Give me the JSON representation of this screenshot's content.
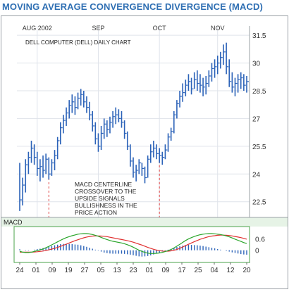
{
  "page": {
    "title": "MOVING AVERAGE CONVERGENCE DIVERGENCE (MACD)"
  },
  "chart_data": {
    "type": "ohlc",
    "subtitle": "DELL COMPUTER (DELL) DAILY CHART",
    "months": [
      "AUG 2002",
      "SEP",
      "OCT",
      "NOV"
    ],
    "price_ticks": [
      "31.5",
      "30",
      "28.5",
      "27",
      "25.5",
      "24",
      "22.5"
    ],
    "ylim": [
      21.5,
      32.0
    ],
    "day_labels": [
      "24",
      "01",
      "09",
      "19",
      "27",
      "05",
      "13",
      "23",
      "01",
      "09",
      "17",
      "25",
      "04",
      "12",
      "20"
    ],
    "annotation_lines": [
      "MACD CENTERLINE",
      "CROSSOVER TO THE",
      "UPSIDE SIGNALS",
      "BULLISHNESS IN THE",
      "PRICE ACTION"
    ],
    "price_series": [
      {
        "h": 24.6,
        "l": 22.0,
        "c": 22.6
      },
      {
        "h": 23.8,
        "l": 22.3,
        "c": 23.4
      },
      {
        "h": 24.8,
        "l": 23.0,
        "c": 24.5
      },
      {
        "h": 25.2,
        "l": 24.0,
        "c": 24.9
      },
      {
        "h": 25.8,
        "l": 24.6,
        "c": 25.4
      },
      {
        "h": 25.6,
        "l": 24.5,
        "c": 24.9
      },
      {
        "h": 25.2,
        "l": 23.9,
        "c": 24.3
      },
      {
        "h": 24.8,
        "l": 23.6,
        "c": 24.4
      },
      {
        "h": 25.0,
        "l": 23.8,
        "c": 24.2
      },
      {
        "h": 25.1,
        "l": 24.0,
        "c": 24.8
      },
      {
        "h": 24.9,
        "l": 23.7,
        "c": 24.0
      },
      {
        "h": 24.8,
        "l": 23.9,
        "c": 24.6
      },
      {
        "h": 25.3,
        "l": 24.2,
        "c": 25.0
      },
      {
        "h": 26.0,
        "l": 24.8,
        "c": 25.8
      },
      {
        "h": 26.8,
        "l": 25.6,
        "c": 26.5
      },
      {
        "h": 27.2,
        "l": 26.2,
        "c": 26.9
      },
      {
        "h": 27.6,
        "l": 26.6,
        "c": 27.3
      },
      {
        "h": 28.0,
        "l": 27.0,
        "c": 27.7
      },
      {
        "h": 28.3,
        "l": 27.3,
        "c": 27.9
      },
      {
        "h": 28.2,
        "l": 27.2,
        "c": 27.6
      },
      {
        "h": 28.4,
        "l": 27.5,
        "c": 28.1
      },
      {
        "h": 28.6,
        "l": 27.7,
        "c": 28.3
      },
      {
        "h": 28.5,
        "l": 27.6,
        "c": 27.9
      },
      {
        "h": 28.2,
        "l": 27.3,
        "c": 27.6
      },
      {
        "h": 27.9,
        "l": 26.9,
        "c": 27.2
      },
      {
        "h": 27.4,
        "l": 26.3,
        "c": 26.6
      },
      {
        "h": 26.8,
        "l": 25.6,
        "c": 25.9
      },
      {
        "h": 26.2,
        "l": 25.2,
        "c": 25.5
      },
      {
        "h": 26.6,
        "l": 25.3,
        "c": 26.2
      },
      {
        "h": 27.0,
        "l": 25.9,
        "c": 26.7
      },
      {
        "h": 26.9,
        "l": 26.0,
        "c": 26.4
      },
      {
        "h": 27.1,
        "l": 26.2,
        "c": 26.8
      },
      {
        "h": 27.4,
        "l": 26.5,
        "c": 27.1
      },
      {
        "h": 27.6,
        "l": 26.7,
        "c": 27.2
      },
      {
        "h": 27.5,
        "l": 26.8,
        "c": 27.0
      },
      {
        "h": 27.4,
        "l": 26.5,
        "c": 26.8
      },
      {
        "h": 26.9,
        "l": 25.9,
        "c": 26.2
      },
      {
        "h": 26.3,
        "l": 25.3,
        "c": 25.5
      },
      {
        "h": 25.6,
        "l": 24.4,
        "c": 24.7
      },
      {
        "h": 24.9,
        "l": 23.8,
        "c": 24.1
      },
      {
        "h": 24.5,
        "l": 23.6,
        "c": 24.2
      },
      {
        "h": 24.8,
        "l": 24.0,
        "c": 24.6
      },
      {
        "h": 24.6,
        "l": 23.9,
        "c": 24.3
      },
      {
        "h": 24.4,
        "l": 23.5,
        "c": 23.8
      },
      {
        "h": 25.0,
        "l": 23.8,
        "c": 24.8
      },
      {
        "h": 25.6,
        "l": 24.6,
        "c": 25.2
      },
      {
        "h": 25.8,
        "l": 24.9,
        "c": 25.4
      },
      {
        "h": 25.6,
        "l": 24.8,
        "c": 25.1
      },
      {
        "h": 25.4,
        "l": 24.6,
        "c": 25.0
      },
      {
        "h": 25.2,
        "l": 24.5,
        "c": 24.9
      },
      {
        "h": 25.6,
        "l": 24.8,
        "c": 25.3
      },
      {
        "h": 26.2,
        "l": 25.2,
        "c": 26.0
      },
      {
        "h": 26.5,
        "l": 25.8,
        "c": 26.3
      },
      {
        "h": 27.4,
        "l": 26.2,
        "c": 27.2
      },
      {
        "h": 28.0,
        "l": 27.0,
        "c": 27.8
      },
      {
        "h": 28.5,
        "l": 27.6,
        "c": 28.2
      },
      {
        "h": 28.9,
        "l": 27.9,
        "c": 28.4
      },
      {
        "h": 29.1,
        "l": 28.2,
        "c": 28.8
      },
      {
        "h": 29.4,
        "l": 28.5,
        "c": 29.0
      },
      {
        "h": 29.2,
        "l": 28.3,
        "c": 28.6
      },
      {
        "h": 29.5,
        "l": 28.6,
        "c": 29.1
      },
      {
        "h": 29.6,
        "l": 28.5,
        "c": 28.9
      },
      {
        "h": 29.4,
        "l": 28.4,
        "c": 28.8
      },
      {
        "h": 29.2,
        "l": 28.2,
        "c": 28.7
      },
      {
        "h": 29.3,
        "l": 28.3,
        "c": 28.9
      },
      {
        "h": 29.6,
        "l": 28.7,
        "c": 29.3
      },
      {
        "h": 30.0,
        "l": 29.0,
        "c": 29.7
      },
      {
        "h": 30.2,
        "l": 29.2,
        "c": 29.8
      },
      {
        "h": 30.4,
        "l": 29.4,
        "c": 30.0
      },
      {
        "h": 30.6,
        "l": 29.7,
        "c": 30.3
      },
      {
        "h": 31.0,
        "l": 29.9,
        "c": 30.6
      },
      {
        "h": 31.1,
        "l": 29.4,
        "c": 29.8
      },
      {
        "h": 30.2,
        "l": 28.7,
        "c": 29.0
      },
      {
        "h": 29.5,
        "l": 28.4,
        "c": 28.7
      },
      {
        "h": 29.2,
        "l": 28.2,
        "c": 28.9
      },
      {
        "h": 29.4,
        "l": 28.4,
        "c": 29.1
      },
      {
        "h": 29.5,
        "l": 28.6,
        "c": 29.2
      },
      {
        "h": 29.4,
        "l": 28.5,
        "c": 28.8
      },
      {
        "h": 29.3,
        "l": 28.4,
        "c": 29.0
      }
    ],
    "macd_label": "MACD",
    "macd_ticks": [
      "0.6",
      "0"
    ],
    "macd_ylim": [
      -0.6,
      1.2
    ],
    "macd": [
      -0.05,
      -0.1,
      -0.12,
      -0.12,
      -0.1,
      -0.06,
      -0.02,
      0.02,
      0.07,
      0.13,
      0.2,
      0.28,
      0.36,
      0.44,
      0.52,
      0.59,
      0.66,
      0.71,
      0.76,
      0.8,
      0.84,
      0.86,
      0.87,
      0.87,
      0.85,
      0.82,
      0.78,
      0.73,
      0.67,
      0.61,
      0.56,
      0.51,
      0.47,
      0.44,
      0.41,
      0.38,
      0.34,
      0.29,
      0.23,
      0.16,
      0.08,
      0.0,
      -0.06,
      -0.11,
      -0.15,
      -0.17,
      -0.17,
      -0.16,
      -0.14,
      -0.11,
      -0.07,
      -0.02,
      0.04,
      0.12,
      0.21,
      0.31,
      0.41,
      0.51,
      0.59,
      0.66,
      0.72,
      0.77,
      0.81,
      0.84,
      0.86,
      0.87,
      0.87,
      0.86,
      0.84,
      0.82,
      0.79,
      0.75,
      0.7,
      0.64,
      0.58,
      0.52,
      0.46,
      0.4,
      0.35
    ],
    "signal": [
      -0.1,
      -0.1,
      -0.1,
      -0.1,
      -0.1,
      -0.09,
      -0.08,
      -0.06,
      -0.04,
      -0.01,
      0.02,
      0.06,
      0.1,
      0.15,
      0.2,
      0.26,
      0.32,
      0.38,
      0.44,
      0.5,
      0.55,
      0.6,
      0.65,
      0.69,
      0.72,
      0.74,
      0.75,
      0.75,
      0.74,
      0.73,
      0.71,
      0.68,
      0.65,
      0.62,
      0.59,
      0.56,
      0.53,
      0.5,
      0.46,
      0.42,
      0.37,
      0.32,
      0.27,
      0.21,
      0.15,
      0.1,
      0.05,
      0.01,
      -0.02,
      -0.04,
      -0.05,
      -0.05,
      -0.03,
      0.0,
      0.04,
      0.1,
      0.17,
      0.24,
      0.31,
      0.38,
      0.45,
      0.51,
      0.57,
      0.62,
      0.67,
      0.71,
      0.74,
      0.76,
      0.78,
      0.79,
      0.79,
      0.78,
      0.77,
      0.75,
      0.72,
      0.69,
      0.66,
      0.62,
      0.58
    ]
  }
}
